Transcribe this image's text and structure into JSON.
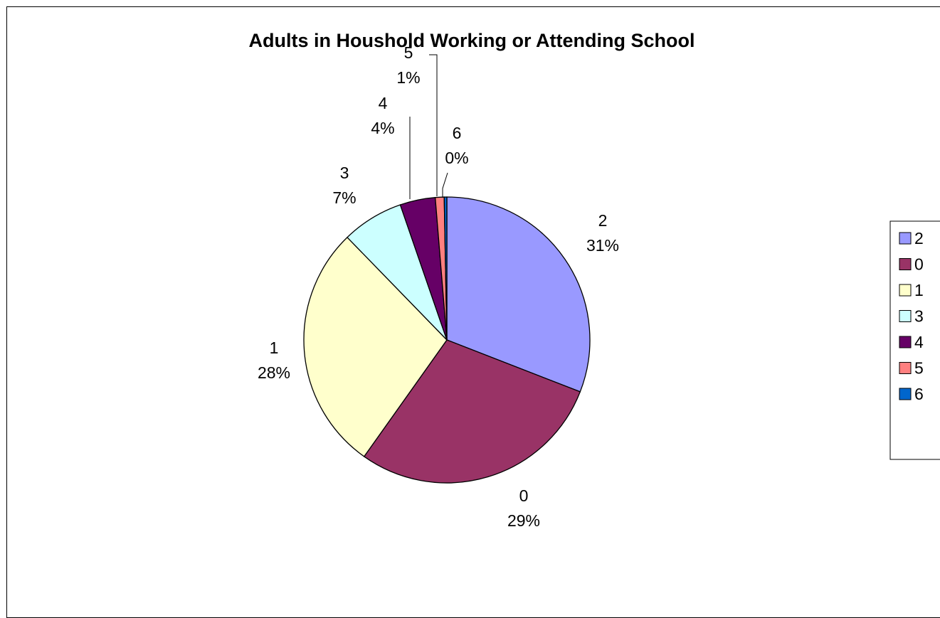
{
  "chart_data": {
    "type": "pie",
    "title": "Adults in Houshold Working or Attending School",
    "slices": [
      {
        "label": "2",
        "value": 31,
        "percent_label": "31%",
        "color": "#9999FF"
      },
      {
        "label": "0",
        "value": 29,
        "percent_label": "29%",
        "color": "#993366"
      },
      {
        "label": "1",
        "value": 28,
        "percent_label": "28%",
        "color": "#FFFFCC"
      },
      {
        "label": "3",
        "value": 7,
        "percent_label": "7%",
        "color": "#CCFFFF"
      },
      {
        "label": "4",
        "value": 4,
        "percent_label": "4%",
        "color": "#660066"
      },
      {
        "label": "5",
        "value": 1,
        "percent_label": "1%",
        "color": "#FF8080"
      },
      {
        "label": "6",
        "value": 0.3,
        "percent_label": "0%",
        "color": "#0066CC"
      }
    ],
    "legend": {
      "placement": "right",
      "entries": [
        "2",
        "0",
        "1",
        "3",
        "4",
        "5",
        "6"
      ]
    }
  }
}
